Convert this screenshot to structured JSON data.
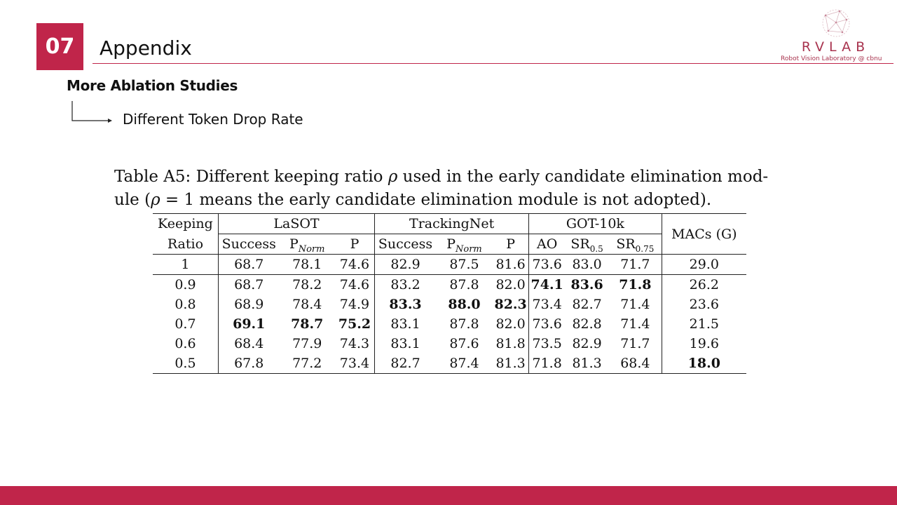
{
  "header": {
    "number": "07",
    "title": "Appendix"
  },
  "logo": {
    "name": "RVLAB",
    "subtitle": "Robot Vision Laboratory @ cbnu"
  },
  "section": {
    "title": "More Ablation Studies",
    "subtitle": "Different Token Drop Rate"
  },
  "caption": {
    "part1": "Table A5: Different keeping ratio ",
    "rho": "ρ",
    "part2": " used in the early candidate elimination mod-",
    "part3": "ule (",
    "part4": " = 1 means the early candidate elimination module is not adopted)."
  },
  "table": {
    "header": {
      "row_label_top": "Keeping",
      "row_label_bottom": "Ratio",
      "groups": [
        "LaSOT",
        "TrackingNet",
        "GOT-10k"
      ],
      "macs": "MACs (G)",
      "success": "Success",
      "pnorm_main": "P",
      "pnorm_sub": "Norm",
      "p": "P",
      "ao": "AO",
      "sr_main": "SR",
      "sr05_sub": "0.5",
      "sr075_sub": "0.75"
    },
    "rows": [
      {
        "ratio": "1",
        "v": [
          "68.7",
          "78.1",
          "74.6",
          "82.9",
          "87.5",
          "81.6",
          "73.6",
          "83.0",
          "71.7",
          "29.0"
        ]
      },
      {
        "ratio": "0.9",
        "v": [
          "68.7",
          "78.2",
          "74.6",
          "83.2",
          "87.8",
          "82.0",
          "74.1",
          "83.6",
          "71.8",
          "26.2"
        ]
      },
      {
        "ratio": "0.8",
        "v": [
          "68.9",
          "78.4",
          "74.9",
          "83.3",
          "88.0",
          "82.3",
          "73.4",
          "82.7",
          "71.4",
          "23.6"
        ]
      },
      {
        "ratio": "0.7",
        "v": [
          "69.1",
          "78.7",
          "75.2",
          "83.1",
          "87.8",
          "82.0",
          "73.6",
          "82.8",
          "71.4",
          "21.5"
        ]
      },
      {
        "ratio": "0.6",
        "v": [
          "68.4",
          "77.9",
          "74.3",
          "83.1",
          "87.6",
          "81.8",
          "73.5",
          "82.9",
          "71.7",
          "19.6"
        ]
      },
      {
        "ratio": "0.5",
        "v": [
          "67.8",
          "77.2",
          "73.4",
          "82.7",
          "87.4",
          "81.3",
          "71.8",
          "81.3",
          "68.4",
          "18.0"
        ]
      }
    ]
  },
  "colors": {
    "accent": "#c0254a",
    "logo": "#a8334e"
  }
}
